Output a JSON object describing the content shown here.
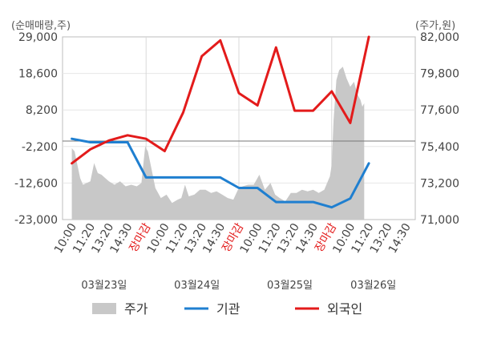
{
  "chart_data": {
    "type": "line",
    "left_axis_unit": "(순매매량,주)",
    "right_axis_unit": "(주가,원)",
    "left_ylim": [
      -23000,
      29000
    ],
    "left_ticks": [
      "29,000",
      "18,600",
      "8,200",
      "-2,200",
      "-12,600",
      "-23,000"
    ],
    "right_ylim": [
      71000,
      82000
    ],
    "right_ticks": [
      "82,000",
      "79,800",
      "77,600",
      "75,400",
      "73,200",
      "71,000"
    ],
    "x_tick_labels": [
      {
        "label": "10:00",
        "close": false
      },
      {
        "label": "11:20",
        "close": false
      },
      {
        "label": "13:20",
        "close": false
      },
      {
        "label": "14:30",
        "close": false
      },
      {
        "label": "장마감",
        "close": true
      },
      {
        "label": "10:00",
        "close": false
      },
      {
        "label": "11:20",
        "close": false
      },
      {
        "label": "13:20",
        "close": false
      },
      {
        "label": "14:30",
        "close": false
      },
      {
        "label": "장마감",
        "close": true
      },
      {
        "label": "10:00",
        "close": false
      },
      {
        "label": "11:20",
        "close": false
      },
      {
        "label": "13:20",
        "close": false
      },
      {
        "label": "14:30",
        "close": false
      },
      {
        "label": "장마감",
        "close": true
      },
      {
        "label": "10:00",
        "close": false
      },
      {
        "label": "11:20",
        "close": false
      },
      {
        "label": "13:20",
        "close": false
      },
      {
        "label": "14:30",
        "close": false
      }
    ],
    "dates": [
      "03월23일",
      "03월24일",
      "03월25일",
      "03월26일"
    ],
    "session_dividers": [
      4,
      9,
      14
    ],
    "series": [
      {
        "name": "주가",
        "kind": "area",
        "axis": "right",
        "color": "#c8c8c8",
        "values": [
          [
            0,
            75.3
          ],
          [
            0.15,
            75.1
          ],
          [
            0.3,
            74.3
          ],
          [
            0.45,
            73.5
          ],
          [
            0.6,
            73.1
          ],
          [
            0.8,
            73.2
          ],
          [
            1.0,
            73.3
          ],
          [
            1.2,
            74.4
          ],
          [
            1.4,
            73.8
          ],
          [
            1.6,
            73.7
          ],
          [
            1.8,
            73.5
          ],
          [
            2.0,
            73.3
          ],
          [
            2.3,
            73.1
          ],
          [
            2.6,
            73.3
          ],
          [
            2.9,
            73.0
          ],
          [
            3.2,
            73.1
          ],
          [
            3.5,
            73.0
          ],
          [
            3.75,
            73.2
          ],
          [
            3.95,
            75.4
          ],
          [
            4.1,
            75.1
          ],
          [
            4.3,
            74.0
          ],
          [
            4.5,
            72.9
          ],
          [
            4.8,
            72.3
          ],
          [
            5.1,
            72.5
          ],
          [
            5.4,
            72.0
          ],
          [
            5.7,
            72.2
          ],
          [
            5.9,
            72.3
          ],
          [
            6.1,
            73.1
          ],
          [
            6.3,
            72.4
          ],
          [
            6.6,
            72.5
          ],
          [
            6.9,
            72.8
          ],
          [
            7.2,
            72.8
          ],
          [
            7.5,
            72.6
          ],
          [
            7.8,
            72.7
          ],
          [
            8.1,
            72.5
          ],
          [
            8.4,
            72.3
          ],
          [
            8.7,
            72.2
          ],
          [
            8.95,
            72.8
          ],
          [
            9.2,
            73.0
          ],
          [
            9.5,
            73.1
          ],
          [
            9.8,
            73.1
          ],
          [
            10.1,
            73.7
          ],
          [
            10.4,
            72.8
          ],
          [
            10.7,
            73.2
          ],
          [
            10.95,
            72.5
          ],
          [
            11.2,
            72.3
          ],
          [
            11.5,
            72.1
          ],
          [
            11.8,
            72.6
          ],
          [
            12.1,
            72.6
          ],
          [
            12.4,
            72.8
          ],
          [
            12.7,
            72.7
          ],
          [
            13.0,
            72.8
          ],
          [
            13.3,
            72.6
          ],
          [
            13.6,
            72.8
          ],
          [
            13.9,
            73.6
          ],
          [
            14.0,
            74.3
          ],
          [
            14.1,
            77.0
          ],
          [
            14.25,
            79.4
          ],
          [
            14.4,
            80.0
          ],
          [
            14.6,
            80.2
          ],
          [
            14.8,
            79.5
          ],
          [
            15.0,
            79.0
          ],
          [
            15.2,
            79.3
          ],
          [
            15.4,
            78.5
          ],
          [
            15.55,
            78.2
          ],
          [
            15.65,
            77.8
          ],
          [
            15.75,
            78.0
          ]
        ]
      },
      {
        "name": "기관",
        "kind": "line",
        "axis": "left",
        "color": "#1f7fd0",
        "values": [
          [
            0,
            0
          ],
          [
            1,
            -1000
          ],
          [
            2,
            -1000
          ],
          [
            3,
            -1000
          ],
          [
            4,
            -11000
          ],
          [
            5,
            -11000
          ],
          [
            6,
            -11000
          ],
          [
            7,
            -11000
          ],
          [
            8,
            -11000
          ],
          [
            9,
            -14000
          ],
          [
            10,
            -14000
          ],
          [
            11,
            -18000
          ],
          [
            12,
            -18000
          ],
          [
            13,
            -18000
          ],
          [
            14,
            -19500
          ],
          [
            15,
            -17000
          ],
          [
            16,
            -7000
          ]
        ]
      },
      {
        "name": "외국인",
        "kind": "line",
        "axis": "left",
        "color": "#e31b1b",
        "values": [
          [
            0,
            -7000
          ],
          [
            1,
            -3000
          ],
          [
            2,
            -500
          ],
          [
            3,
            1000
          ],
          [
            4,
            0
          ],
          [
            5,
            -3500
          ],
          [
            6,
            7500
          ],
          [
            7,
            23500
          ],
          [
            8,
            28000
          ],
          [
            9,
            13000
          ],
          [
            10,
            9500
          ],
          [
            11,
            26000
          ],
          [
            12,
            8000
          ],
          [
            13,
            8000
          ],
          [
            14,
            13500
          ],
          [
            15,
            4500
          ],
          [
            16,
            29000
          ]
        ]
      }
    ],
    "legend_placement": "bottom"
  }
}
